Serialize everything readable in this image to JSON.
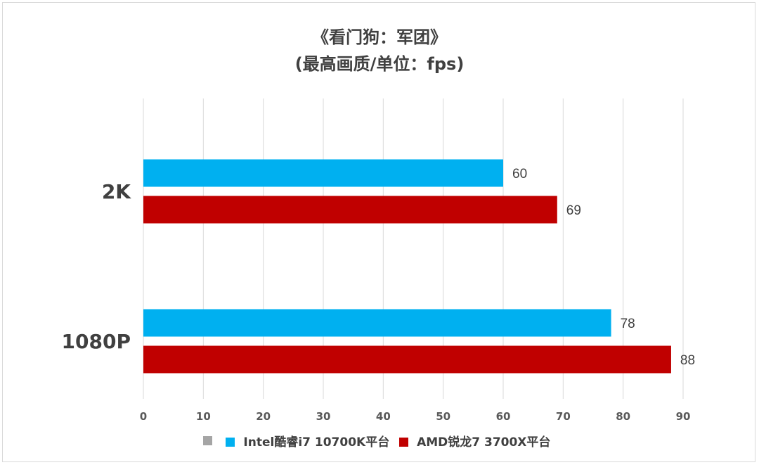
{
  "chart_data": {
    "type": "bar",
    "orientation": "horizontal",
    "title": "《看门狗：军团》",
    "subtitle": "(最高画质/单位：fps)",
    "categories": [
      "2K",
      "1080P"
    ],
    "series": [
      {
        "name": "Intel酷睿i7 10700K平台",
        "color": "#00b0f0",
        "values": [
          60,
          78
        ]
      },
      {
        "name": "AMD锐龙7 3700X平台",
        "color": "#c00000",
        "values": [
          69,
          88
        ]
      }
    ],
    "legend_extra_swatch_color": "#a5a5a5",
    "xlim": [
      0,
      90
    ],
    "xticks": [
      0,
      10,
      20,
      30,
      40,
      50,
      60,
      70,
      80,
      90
    ],
    "grid": true,
    "legend_position": "bottom",
    "data_labels": true
  }
}
